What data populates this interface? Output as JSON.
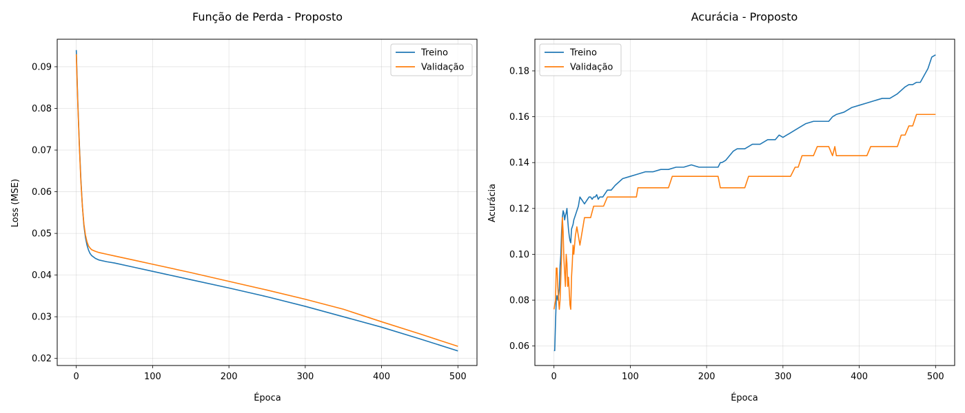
{
  "colors": {
    "train": "#1f77b4",
    "val": "#ff7f0e",
    "grid": "#b0b0b0"
  },
  "chart_data": [
    {
      "type": "line",
      "title": "Função de Perda - Proposto",
      "xlabel": "Época",
      "ylabel": "Loss (MSE)",
      "xlim": [
        -25,
        525
      ],
      "ylim": [
        0.0183,
        0.0966
      ],
      "xticks": [
        0,
        100,
        200,
        300,
        400,
        500
      ],
      "yticks": [
        0.02,
        0.03,
        0.04,
        0.05,
        0.06,
        0.07,
        0.08,
        0.09
      ],
      "ytick_labels": [
        "0.02",
        "0.03",
        "0.04",
        "0.05",
        "0.06",
        "0.07",
        "0.08",
        "0.09"
      ],
      "grid": true,
      "legend": "upper right",
      "series": [
        {
          "name": "Treino",
          "color": "#1f77b4",
          "x": [
            0,
            2,
            4,
            6,
            8,
            10,
            12,
            14,
            16,
            18,
            20,
            25,
            30,
            40,
            50,
            75,
            100,
            150,
            200,
            250,
            300,
            350,
            400,
            450,
            500
          ],
          "y": [
            0.094,
            0.0815,
            0.0715,
            0.063,
            0.0565,
            0.0518,
            0.049,
            0.0472,
            0.046,
            0.0452,
            0.0447,
            0.044,
            0.0436,
            0.0432,
            0.0429,
            0.0419,
            0.0409,
            0.0389,
            0.0369,
            0.0348,
            0.0325,
            0.03,
            0.0275,
            0.0247,
            0.0218
          ]
        },
        {
          "name": "Validação",
          "color": "#ff7f0e",
          "x": [
            0,
            2,
            4,
            6,
            8,
            10,
            12,
            14,
            16,
            18,
            20,
            25,
            30,
            40,
            50,
            75,
            100,
            150,
            200,
            250,
            300,
            350,
            400,
            450,
            500
          ],
          "y": [
            0.093,
            0.081,
            0.071,
            0.0625,
            0.0565,
            0.0522,
            0.0496,
            0.048,
            0.047,
            0.0465,
            0.0461,
            0.0457,
            0.0454,
            0.045,
            0.0446,
            0.0436,
            0.0426,
            0.0406,
            0.0385,
            0.0364,
            0.0342,
            0.0318,
            0.0288,
            0.0259,
            0.0229
          ]
        }
      ]
    },
    {
      "type": "line",
      "title": "Acurácia - Proposto",
      "xlabel": "Época",
      "ylabel": "Acurácia",
      "xlim": [
        -25,
        525
      ],
      "ylim": [
        0.0515,
        0.1938
      ],
      "xticks": [
        0,
        100,
        200,
        300,
        400,
        500
      ],
      "yticks": [
        0.06,
        0.08,
        0.1,
        0.12,
        0.14,
        0.16,
        0.18
      ],
      "ytick_labels": [
        "0.06",
        "0.08",
        "0.10",
        "0.12",
        "0.14",
        "0.16",
        "0.18"
      ],
      "grid": true,
      "legend": "upper left",
      "series": [
        {
          "name": "Treino",
          "color": "#1f77b4",
          "x": [
            0,
            1,
            2,
            3,
            4,
            5,
            6,
            7,
            8,
            9,
            10,
            11,
            12,
            13,
            14,
            15,
            16,
            17,
            18,
            19,
            20,
            21,
            22,
            23,
            24,
            25,
            26,
            28,
            30,
            32,
            34,
            36,
            38,
            40,
            42,
            44,
            46,
            48,
            50,
            52,
            54,
            56,
            58,
            60,
            62,
            64,
            66,
            68,
            70,
            75,
            80,
            90,
            100,
            110,
            120,
            130,
            140,
            150,
            160,
            170,
            180,
            190,
            200,
            210,
            215,
            218,
            220,
            225,
            230,
            235,
            240,
            245,
            250,
            260,
            270,
            280,
            290,
            295,
            300,
            305,
            310,
            315,
            320,
            330,
            340,
            350,
            360,
            365,
            370,
            380,
            390,
            400,
            410,
            420,
            430,
            440,
            450,
            460,
            465,
            470,
            475,
            480,
            485,
            490,
            495,
            500
          ],
          "y": [
            0.058,
            0.058,
            0.07,
            0.08,
            0.082,
            0.08,
            0.082,
            0.085,
            0.095,
            0.1,
            0.11,
            0.116,
            0.119,
            0.118,
            0.115,
            0.117,
            0.118,
            0.12,
            0.115,
            0.111,
            0.108,
            0.106,
            0.105,
            0.111,
            0.112,
            0.113,
            0.115,
            0.117,
            0.119,
            0.121,
            0.125,
            0.124,
            0.123,
            0.122,
            0.123,
            0.124,
            0.125,
            0.125,
            0.124,
            0.125,
            0.125,
            0.126,
            0.124,
            0.125,
            0.125,
            0.125,
            0.126,
            0.127,
            0.128,
            0.128,
            0.13,
            0.133,
            0.134,
            0.135,
            0.136,
            0.136,
            0.137,
            0.137,
            0.138,
            0.138,
            0.139,
            0.138,
            0.138,
            0.138,
            0.138,
            0.14,
            0.14,
            0.141,
            0.143,
            0.145,
            0.146,
            0.146,
            0.146,
            0.148,
            0.148,
            0.15,
            0.15,
            0.152,
            0.151,
            0.152,
            0.153,
            0.154,
            0.155,
            0.157,
            0.158,
            0.158,
            0.158,
            0.16,
            0.161,
            0.162,
            0.164,
            0.165,
            0.166,
            0.167,
            0.168,
            0.168,
            0.17,
            0.173,
            0.174,
            0.174,
            0.175,
            0.175,
            0.178,
            0.181,
            0.186,
            0.187
          ]
        },
        {
          "name": "Validação",
          "color": "#ff7f0e",
          "x": [
            0,
            2,
            3,
            4,
            5,
            6,
            7,
            8,
            9,
            10,
            11,
            12,
            13,
            14,
            15,
            16,
            17,
            18,
            19,
            20,
            21,
            22,
            23,
            24,
            25,
            26,
            28,
            30,
            32,
            34,
            36,
            38,
            40,
            44,
            48,
            52,
            56,
            60,
            65,
            70,
            72,
            74,
            80,
            90,
            100,
            108,
            110,
            120,
            130,
            140,
            150,
            155,
            160,
            170,
            180,
            190,
            200,
            210,
            215,
            218,
            220,
            230,
            240,
            250,
            255,
            260,
            270,
            280,
            290,
            300,
            310,
            316,
            320,
            325,
            330,
            340,
            345,
            350,
            355,
            360,
            365,
            368,
            370,
            380,
            390,
            400,
            410,
            415,
            420,
            430,
            440,
            450,
            455,
            460,
            465,
            470,
            475,
            480,
            490,
            500
          ],
          "y": [
            0.076,
            0.08,
            0.094,
            0.094,
            0.086,
            0.08,
            0.076,
            0.08,
            0.09,
            0.1,
            0.116,
            0.11,
            0.098,
            0.092,
            0.086,
            0.1,
            0.096,
            0.086,
            0.09,
            0.084,
            0.078,
            0.076,
            0.09,
            0.096,
            0.104,
            0.1,
            0.108,
            0.112,
            0.108,
            0.104,
            0.108,
            0.112,
            0.116,
            0.116,
            0.116,
            0.121,
            0.121,
            0.121,
            0.121,
            0.125,
            0.125,
            0.125,
            0.125,
            0.125,
            0.125,
            0.125,
            0.129,
            0.129,
            0.129,
            0.129,
            0.129,
            0.134,
            0.134,
            0.134,
            0.134,
            0.134,
            0.134,
            0.134,
            0.134,
            0.129,
            0.129,
            0.129,
            0.129,
            0.129,
            0.134,
            0.134,
            0.134,
            0.134,
            0.134,
            0.134,
            0.134,
            0.138,
            0.138,
            0.143,
            0.143,
            0.143,
            0.147,
            0.147,
            0.147,
            0.147,
            0.143,
            0.147,
            0.143,
            0.143,
            0.143,
            0.143,
            0.143,
            0.147,
            0.147,
            0.147,
            0.147,
            0.147,
            0.152,
            0.152,
            0.156,
            0.156,
            0.161,
            0.161,
            0.161,
            0.161
          ]
        }
      ]
    }
  ]
}
